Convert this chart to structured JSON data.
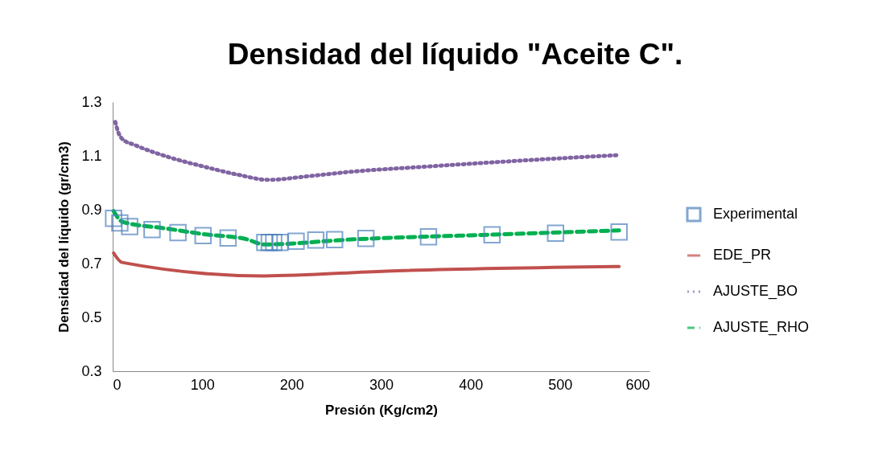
{
  "chart_data": {
    "type": "line",
    "title": "Densidad del líquido \"Aceite C\".",
    "xlabel": "Presión  (Kg/cm2)",
    "ylabel": "Densidad del líquido  (gr/cm3)",
    "xlim": [
      0,
      600
    ],
    "xticks": [
      0,
      100,
      200,
      300,
      400,
      500,
      600
    ],
    "ylim": [
      0.3,
      1.3
    ],
    "yticks": [
      0.3,
      0.5,
      0.7,
      0.9,
      1.1,
      1.3
    ],
    "grid": false,
    "legend": "right",
    "series": [
      {
        "name": "Experimental",
        "type": "scatter",
        "marker": "square",
        "color": "#4f81bd",
        "x": [
          1,
          8,
          19,
          44,
          73,
          101,
          129,
          170,
          175,
          180,
          187,
          205,
          227,
          248,
          283,
          353,
          424,
          495,
          566
        ],
        "values": [
          0.868,
          0.851,
          0.837,
          0.826,
          0.815,
          0.804,
          0.795,
          0.778,
          0.778,
          0.778,
          0.778,
          0.783,
          0.787,
          0.789,
          0.793,
          0.799,
          0.807,
          0.813,
          0.817
        ]
      },
      {
        "name": "EDE_PR",
        "type": "line",
        "line_style": "solid",
        "color": "#c0504d",
        "x": [
          1,
          10.5,
          169,
          306,
          566
        ],
        "values": [
          0.739,
          0.704,
          0.654,
          0.672,
          0.689
        ]
      },
      {
        "name": "AJUSTE_BO",
        "type": "line",
        "line_style": "dotted",
        "color": "#8064a2",
        "x": [
          3,
          6,
          11,
          25,
          61,
          102,
          140,
          174,
          220,
          270,
          350,
          420,
          495,
          566
        ],
        "values": [
          1.226,
          1.19,
          1.162,
          1.14,
          1.097,
          1.06,
          1.03,
          1.011,
          1.025,
          1.042,
          1.06,
          1.075,
          1.09,
          1.103
        ]
      },
      {
        "name": "AJUSTE_RHO",
        "type": "line",
        "line_style": "dashed",
        "color": "#00b050",
        "x": [
          1,
          11,
          60,
          100,
          150,
          169,
          270,
          420,
          566
        ],
        "values": [
          0.895,
          0.855,
          0.83,
          0.81,
          0.79,
          0.771,
          0.79,
          0.807,
          0.823
        ]
      }
    ]
  }
}
